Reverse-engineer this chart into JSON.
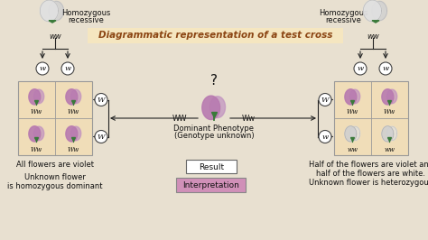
{
  "title": "Diagrammatic representation of a test cross",
  "title_bg": "#f5e6c0",
  "title_color": "#8B4513",
  "bg_color": "#e8e0d0",
  "left_label1": "Homozygous",
  "left_label2": "recessive",
  "right_label1": "Homozygous",
  "right_label2": "recessive",
  "left_genotype": "ww",
  "right_genotype": "ww",
  "left_box_labels": [
    [
      "Ww",
      "Ww"
    ],
    [
      "Ww",
      "Ww"
    ]
  ],
  "right_box_labels": [
    [
      "Ww",
      "Ww"
    ],
    [
      "ww",
      "ww"
    ]
  ],
  "center_label1": "Dominant Phenotype",
  "center_label2": "(Genotype unknown)",
  "center_question": "?",
  "center_cross_left": "WW",
  "center_cross_right": "Ww",
  "result_label": "Result",
  "interpretation_label": "Interpretation",
  "bottom_left1": "All flowers are violet",
  "bottom_left2": "Unknown flower\nis homozygous dominant",
  "bottom_right1": "Half of the flowers are violet and\nhalf of the flowers are white.",
  "bottom_right2": "Unknown flower is heterozygous",
  "violet_color": "#b87ab0",
  "white_color": "#d8d8d8",
  "box_bg": "#f0ddb8",
  "arrow_color": "#222222",
  "text_color": "#111111",
  "result_box_color": "#cccccc",
  "interp_box_color": "#d090b8",
  "gamete_left_top": [
    "w",
    "w"
  ],
  "gamete_right_top": [
    "w",
    "w"
  ],
  "gamete_left_side": [
    "W",
    "W"
  ],
  "gamete_right_side": [
    "W",
    "w"
  ]
}
